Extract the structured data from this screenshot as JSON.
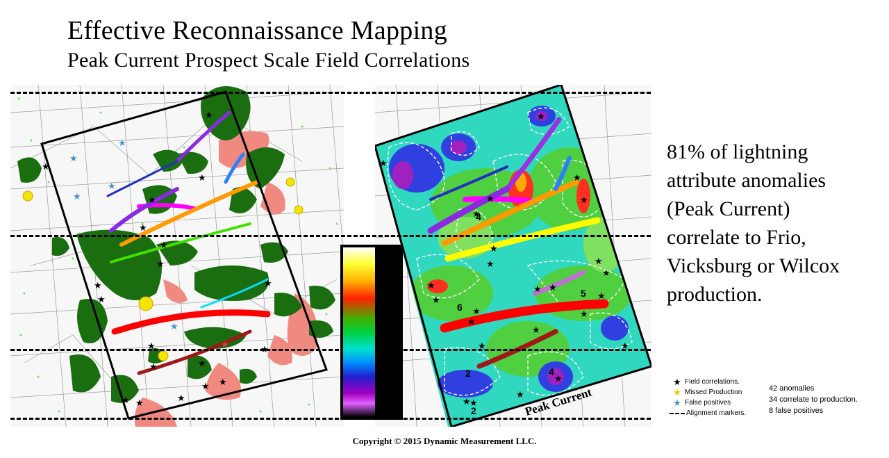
{
  "header": {
    "title": "Effective Reconnaissance Mapping",
    "subtitle": "Peak Current Prospect Scale Field Correlations"
  },
  "right_map": {
    "overlay_label": "Peak Current",
    "anomaly_numbers": [
      "4",
      "5",
      "6",
      "2",
      "4",
      "2"
    ]
  },
  "summary": {
    "text_lines": [
      "81% of lightning",
      "attribute anomalies",
      "(Peak Current)",
      "correlate to  Frio,",
      "Vicksburg or Wilcox",
      "production."
    ]
  },
  "legend": {
    "items": [
      {
        "symbol": "★",
        "color": "#000000",
        "label": "Field correlations."
      },
      {
        "symbol": "★",
        "color": "#f2c400",
        "label": "Missed Production"
      },
      {
        "symbol": "★",
        "color": "#4a8fd8",
        "label": "False positives"
      },
      {
        "symbol": "dash",
        "color": "#000000",
        "label": "Alignment markers."
      }
    ]
  },
  "stats": {
    "lines": [
      "42 anomalies",
      "34 correlate to production.",
      "8 false positives"
    ]
  },
  "colors": {
    "purple_trend": "#8a2be2",
    "blue_trend": "#2030c0",
    "magenta_trend": "#ff00ff",
    "orange_trend": "#ff9a00",
    "green_trend": "#40e000",
    "yellow_trend": "#ffff00",
    "cyan_trend": "#00e0ff",
    "red_trend": "#ff0000",
    "darkred_trend": "#a01818",
    "anomaly_green": "#1a6e10",
    "production_pink": "#f08a80"
  },
  "footer": {
    "copyright": "Copyright  © 2015 Dynamic Measurement LLC."
  }
}
